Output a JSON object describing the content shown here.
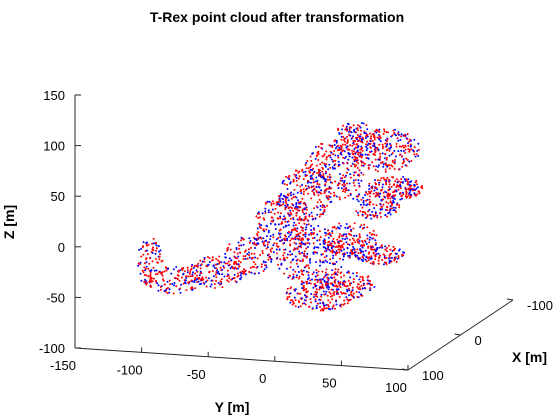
{
  "chart_data": {
    "type": "scatter",
    "title": "T-Rex point cloud after transformation",
    "xlabel": "X [m]",
    "ylabel": "Y [m]",
    "zlabel": "Z [m]",
    "x_ticks": [
      "-100",
      "0",
      "100"
    ],
    "y_ticks": [
      "-150",
      "-100",
      "-50",
      "0",
      "50",
      "100"
    ],
    "z_ticks": [
      "-100",
      "-50",
      "0",
      "50",
      "100",
      "150"
    ],
    "xlim": [
      -100,
      100
    ],
    "ylim": [
      -150,
      100
    ],
    "zlim": [
      -100,
      150
    ],
    "grid": false,
    "series": [
      {
        "color": "#0000ff",
        "marker": "point"
      },
      {
        "color": "#ff0000",
        "marker": "point"
      }
    ],
    "shape": {
      "tail": {
        "y": [
          -125,
          -100
        ],
        "z": [
          -15,
          5
        ]
      },
      "body": {
        "y": [
          -30,
          65
        ],
        "z": [
          -65,
          110
        ]
      },
      "head": {
        "y": [
          50,
          120
        ],
        "z": [
          45,
          115
        ]
      },
      "legs": {
        "y": [
          20,
          110
        ],
        "z": [
          -65,
          0
        ]
      }
    }
  }
}
